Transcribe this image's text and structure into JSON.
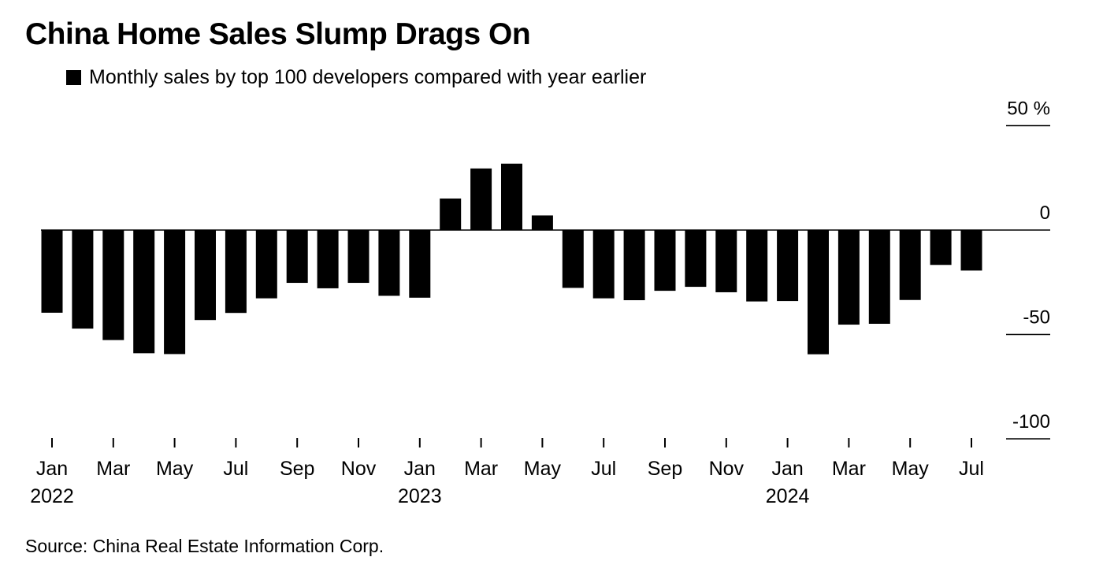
{
  "title": "China Home Sales Slump Drags On",
  "legend": {
    "label": "Monthly sales by top 100 developers compared with year earlier",
    "color": "#000000"
  },
  "source": "Source: China Real Estate Information Corp.",
  "chart_data": {
    "type": "bar",
    "categories": [
      "2022-01",
      "2022-02",
      "2022-03",
      "2022-04",
      "2022-05",
      "2022-06",
      "2022-07",
      "2022-08",
      "2022-09",
      "2022-10",
      "2022-11",
      "2022-12",
      "2023-01",
      "2023-02",
      "2023-03",
      "2023-04",
      "2023-05",
      "2023-06",
      "2023-07",
      "2023-08",
      "2023-09",
      "2023-10",
      "2023-11",
      "2023-12",
      "2024-01",
      "2024-02",
      "2024-03",
      "2024-04",
      "2024-05",
      "2024-06",
      "2024-07"
    ],
    "series": [
      {
        "name": "Monthly sales by top 100 developers compared with year earlier",
        "color": "#000000",
        "values": [
          -39.6,
          -47.2,
          -52.7,
          -59.0,
          -59.4,
          -43.1,
          -39.7,
          -32.7,
          -25.3,
          -27.9,
          -25.3,
          -31.5,
          -32.4,
          15.1,
          29.5,
          31.8,
          7.0,
          -27.7,
          -32.7,
          -33.6,
          -29.1,
          -27.2,
          -29.8,
          -34.2,
          -34.0,
          -59.5,
          -45.3,
          -44.9,
          -33.5,
          -16.7,
          -19.4
        ]
      }
    ],
    "x_tick_labels": [
      {
        "index": 0,
        "month": "Jan",
        "year": "2022"
      },
      {
        "index": 2,
        "month": "Mar",
        "year": ""
      },
      {
        "index": 4,
        "month": "May",
        "year": ""
      },
      {
        "index": 6,
        "month": "Jul",
        "year": ""
      },
      {
        "index": 8,
        "month": "Sep",
        "year": ""
      },
      {
        "index": 10,
        "month": "Nov",
        "year": ""
      },
      {
        "index": 12,
        "month": "Jan",
        "year": "2023"
      },
      {
        "index": 14,
        "month": "Mar",
        "year": ""
      },
      {
        "index": 16,
        "month": "May",
        "year": ""
      },
      {
        "index": 18,
        "month": "Jul",
        "year": ""
      },
      {
        "index": 20,
        "month": "Sep",
        "year": ""
      },
      {
        "index": 22,
        "month": "Nov",
        "year": ""
      },
      {
        "index": 24,
        "month": "Jan",
        "year": "2024"
      },
      {
        "index": 26,
        "month": "Mar",
        "year": ""
      },
      {
        "index": 28,
        "month": "May",
        "year": ""
      },
      {
        "index": 30,
        "month": "Jul",
        "year": ""
      }
    ],
    "y_ticks": [
      {
        "value": 50,
        "label": "50 %"
      },
      {
        "value": 0,
        "label": "0"
      },
      {
        "value": -50,
        "label": "-50"
      },
      {
        "value": -100,
        "label": "-100"
      }
    ],
    "ylim": [
      -100,
      50
    ],
    "y_axis_position": "right",
    "grid": false,
    "legend_position": "top-left",
    "title": "China Home Sales Slump Drags On"
  }
}
